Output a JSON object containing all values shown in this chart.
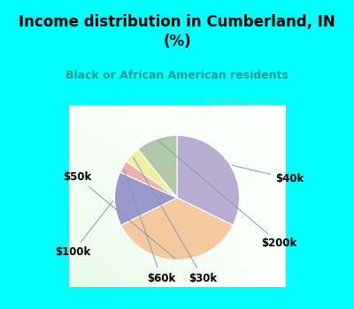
{
  "title": "Income distribution in Cumberland, IN\n(%)",
  "subtitle": "Black or African American residents",
  "title_color": "#000000",
  "subtitle_color": "#2a9d8f",
  "background_cyan": "#00ffff",
  "labels": [
    "$40k",
    "$50k",
    "$100k",
    "$60k",
    "$30k",
    "$200k"
  ],
  "sizes": [
    30,
    33,
    13,
    3,
    4,
    10
  ],
  "colors": [
    "#b8aed4",
    "#f5c9a0",
    "#9999cc",
    "#f0b0b0",
    "#f0f0a0",
    "#b0c8a8"
  ],
  "startangle": 90,
  "label_fontsize": 8.5,
  "watermark": "ⓘ City-Data.com"
}
